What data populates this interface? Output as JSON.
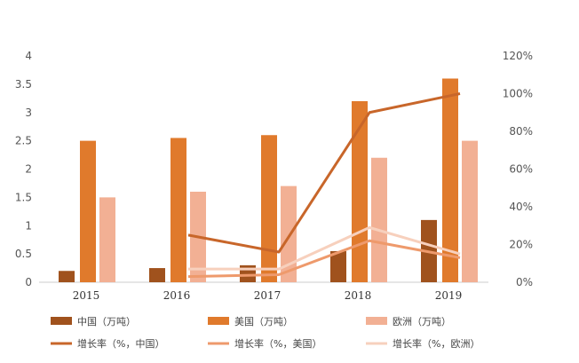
{
  "chart_data": {
    "type": "bar",
    "categories": [
      "2015",
      "2016",
      "2017",
      "2018",
      "2019"
    ],
    "series": [
      {
        "name": "中国（万吨）",
        "kind": "bar",
        "axis": "left",
        "color": "#A0521D",
        "values": [
          0.2,
          0.25,
          0.3,
          0.55,
          1.1
        ]
      },
      {
        "name": "美国（万吨）",
        "kind": "bar",
        "axis": "left",
        "color": "#E07A2C",
        "values": [
          2.5,
          2.55,
          2.6,
          3.2,
          3.6
        ]
      },
      {
        "name": "欧洲（万吨）",
        "kind": "bar",
        "axis": "left",
        "color": "#F2B094",
        "values": [
          1.5,
          1.6,
          1.7,
          2.2,
          2.5
        ]
      },
      {
        "name": "增长率（%，中国）",
        "kind": "line",
        "axis": "right",
        "color": "#C8662A",
        "values": [
          null,
          25,
          16,
          90,
          100
        ]
      },
      {
        "name": "增长率（%，美国）",
        "kind": "line",
        "axis": "right",
        "color": "#EE9A6C",
        "values": [
          null,
          3,
          4,
          22,
          13
        ]
      },
      {
        "name": "增长率（%，欧洲）",
        "kind": "line",
        "axis": "right",
        "color": "#F7D0BD",
        "values": [
          null,
          7,
          7,
          29,
          15
        ]
      }
    ],
    "y_left": {
      "min": 0,
      "max": 4,
      "ticks": [
        "0",
        "0.5",
        "1",
        "1.5",
        "2",
        "2.5",
        "3",
        "3.5",
        "4"
      ]
    },
    "y_right": {
      "min": 0,
      "max": 120,
      "ticks": [
        "0%",
        "20%",
        "40%",
        "60%",
        "80%",
        "100%",
        "120%"
      ]
    },
    "grid": false,
    "legend": "bottom"
  }
}
